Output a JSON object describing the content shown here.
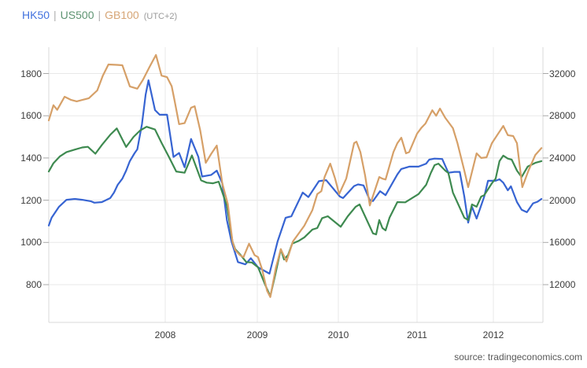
{
  "legend": {
    "items": [
      {
        "label": "HK50",
        "color": "#4372de"
      },
      {
        "label": "US500",
        "color": "#5e9472"
      },
      {
        "label": "GB100",
        "color": "#d6a576"
      }
    ],
    "separator": "|",
    "suffix": "(UTC+2)"
  },
  "source_text": "source: tradingeconomics.com",
  "colors": {
    "hk50_line": "#3764d2",
    "us500_line": "#3e8a50",
    "gb100_line": "#d6a068",
    "gridline": "#e8e8e8",
    "plot_border": "#d9d9d9",
    "tick": "#a8a8a8"
  },
  "chart_data": {
    "type": "line",
    "title": "",
    "xlabel": "",
    "ylabel_left": "",
    "ylabel_right": "",
    "grid": true,
    "legend_position": "top-left",
    "x_axis": {
      "tick_labels": [
        "2008",
        "2009",
        "2010",
        "2011",
        "2012"
      ],
      "range_years": [
        2006.75,
        2012.65
      ]
    },
    "y_axis_left": {
      "ticks": [
        1800,
        1600,
        1400,
        1200,
        1000,
        800
      ],
      "visible_range": [
        621,
        1925
      ]
    },
    "y_axis_right": {
      "ticks": [
        32000,
        28000,
        24000,
        20000,
        16000,
        12000
      ],
      "visible_range": [
        9400,
        34500
      ]
    },
    "series": [
      {
        "name": "HK50",
        "axis": "right",
        "color": "#3764d2",
        "points": [
          [
            2006.75,
            17600
          ],
          [
            2006.78,
            18340
          ],
          [
            2006.86,
            19380
          ],
          [
            2006.94,
            20040
          ],
          [
            2007.03,
            20120
          ],
          [
            2007.11,
            20040
          ],
          [
            2007.2,
            19900
          ],
          [
            2007.24,
            19760
          ],
          [
            2007.32,
            19820
          ],
          [
            2007.41,
            20200
          ],
          [
            2007.45,
            20720
          ],
          [
            2007.49,
            21460
          ],
          [
            2007.54,
            22040
          ],
          [
            2007.58,
            22800
          ],
          [
            2007.62,
            23700
          ],
          [
            2007.67,
            24440
          ],
          [
            2007.7,
            24820
          ],
          [
            2007.75,
            27200
          ],
          [
            2007.79,
            30000
          ],
          [
            2007.82,
            31360
          ],
          [
            2007.89,
            28540
          ],
          [
            2007.94,
            28100
          ],
          [
            2008.02,
            28100
          ],
          [
            2008.09,
            24100
          ],
          [
            2008.15,
            24480
          ],
          [
            2008.21,
            23120
          ],
          [
            2008.28,
            25800
          ],
          [
            2008.36,
            24100
          ],
          [
            2008.4,
            22240
          ],
          [
            2008.5,
            22400
          ],
          [
            2008.56,
            22800
          ],
          [
            2008.62,
            21600
          ],
          [
            2008.67,
            18100
          ],
          [
            2008.72,
            16100
          ],
          [
            2008.79,
            14140
          ],
          [
            2008.87,
            13920
          ],
          [
            2008.93,
            14500
          ],
          [
            2009.01,
            13640
          ],
          [
            2009.15,
            13040
          ],
          [
            2009.25,
            16100
          ],
          [
            2009.35,
            18340
          ],
          [
            2009.42,
            18480
          ],
          [
            2009.56,
            20720
          ],
          [
            2009.63,
            20300
          ],
          [
            2009.76,
            21800
          ],
          [
            2009.85,
            21900
          ],
          [
            2010.02,
            20340
          ],
          [
            2010.06,
            20200
          ],
          [
            2010.2,
            21340
          ],
          [
            2010.25,
            21500
          ],
          [
            2010.32,
            21400
          ],
          [
            2010.4,
            20000
          ],
          [
            2010.44,
            19920
          ],
          [
            2010.53,
            20860
          ],
          [
            2010.6,
            20480
          ],
          [
            2010.75,
            22440
          ],
          [
            2010.8,
            22960
          ],
          [
            2010.9,
            23180
          ],
          [
            2011.02,
            23180
          ],
          [
            2011.12,
            23460
          ],
          [
            2011.16,
            23840
          ],
          [
            2011.23,
            23940
          ],
          [
            2011.33,
            23900
          ],
          [
            2011.41,
            22600
          ],
          [
            2011.49,
            22680
          ],
          [
            2011.56,
            22680
          ],
          [
            2011.62,
            20340
          ],
          [
            2011.67,
            17880
          ],
          [
            2011.72,
            19380
          ],
          [
            2011.78,
            18260
          ],
          [
            2011.88,
            20340
          ],
          [
            2011.93,
            21840
          ],
          [
            2012.03,
            21840
          ],
          [
            2012.08,
            21980
          ],
          [
            2012.13,
            21660
          ],
          [
            2012.19,
            20940
          ],
          [
            2012.23,
            21320
          ],
          [
            2012.31,
            19820
          ],
          [
            2012.37,
            19100
          ],
          [
            2012.44,
            18860
          ],
          [
            2012.52,
            19700
          ],
          [
            2012.58,
            19860
          ],
          [
            2012.63,
            20120
          ]
        ]
      },
      {
        "name": "US500",
        "axis": "left",
        "color": "#3e8a50",
        "points": [
          [
            2006.75,
            1336
          ],
          [
            2006.8,
            1375
          ],
          [
            2006.87,
            1408
          ],
          [
            2006.94,
            1428
          ],
          [
            2007.03,
            1440
          ],
          [
            2007.11,
            1450
          ],
          [
            2007.17,
            1453
          ],
          [
            2007.25,
            1420
          ],
          [
            2007.32,
            1462
          ],
          [
            2007.41,
            1510
          ],
          [
            2007.48,
            1540
          ],
          [
            2007.58,
            1452
          ],
          [
            2007.66,
            1500
          ],
          [
            2007.73,
            1530
          ],
          [
            2007.8,
            1548
          ],
          [
            2007.89,
            1535
          ],
          [
            2007.96,
            1472
          ],
          [
            2008.04,
            1405
          ],
          [
            2008.12,
            1336
          ],
          [
            2008.21,
            1330
          ],
          [
            2008.29,
            1412
          ],
          [
            2008.39,
            1294
          ],
          [
            2008.45,
            1283
          ],
          [
            2008.52,
            1280
          ],
          [
            2008.58,
            1288
          ],
          [
            2008.67,
            1173
          ],
          [
            2008.73,
            1005
          ],
          [
            2008.76,
            968
          ],
          [
            2008.82,
            940
          ],
          [
            2008.88,
            907
          ],
          [
            2008.94,
            905
          ],
          [
            2009.01,
            882
          ],
          [
            2009.1,
            797
          ],
          [
            2009.16,
            745
          ],
          [
            2009.22,
            845
          ],
          [
            2009.29,
            968
          ],
          [
            2009.33,
            919
          ],
          [
            2009.38,
            940
          ],
          [
            2009.43,
            994
          ],
          [
            2009.51,
            1007
          ],
          [
            2009.58,
            1024
          ],
          [
            2009.68,
            1061
          ],
          [
            2009.74,
            1068
          ],
          [
            2009.8,
            1115
          ],
          [
            2009.87,
            1124
          ],
          [
            2010.03,
            1074
          ],
          [
            2010.12,
            1124
          ],
          [
            2010.22,
            1169
          ],
          [
            2010.27,
            1180
          ],
          [
            2010.44,
            1043
          ],
          [
            2010.48,
            1038
          ],
          [
            2010.52,
            1106
          ],
          [
            2010.56,
            1068
          ],
          [
            2010.6,
            1057
          ],
          [
            2010.65,
            1117
          ],
          [
            2010.75,
            1191
          ],
          [
            2010.85,
            1190
          ],
          [
            2011.02,
            1229
          ],
          [
            2011.12,
            1273
          ],
          [
            2011.18,
            1329
          ],
          [
            2011.23,
            1366
          ],
          [
            2011.28,
            1373
          ],
          [
            2011.37,
            1340
          ],
          [
            2011.41,
            1329
          ],
          [
            2011.47,
            1236
          ],
          [
            2011.62,
            1117
          ],
          [
            2011.67,
            1106
          ],
          [
            2011.72,
            1180
          ],
          [
            2011.78,
            1169
          ],
          [
            2011.84,
            1217
          ],
          [
            2011.88,
            1224
          ],
          [
            2011.98,
            1280
          ],
          [
            2012.03,
            1302
          ],
          [
            2012.08,
            1385
          ],
          [
            2012.13,
            1411
          ],
          [
            2012.19,
            1397
          ],
          [
            2012.24,
            1392
          ],
          [
            2012.31,
            1340
          ],
          [
            2012.37,
            1310
          ],
          [
            2012.45,
            1359
          ],
          [
            2012.55,
            1377
          ],
          [
            2012.63,
            1385
          ]
        ]
      },
      {
        "name": "GB100",
        "axis": "left",
        "color": "#d6a068",
        "points": [
          [
            2006.75,
            1578
          ],
          [
            2006.8,
            1650
          ],
          [
            2006.84,
            1628
          ],
          [
            2006.92,
            1690
          ],
          [
            2006.99,
            1675
          ],
          [
            2007.05,
            1668
          ],
          [
            2007.11,
            1675
          ],
          [
            2007.18,
            1683
          ],
          [
            2007.27,
            1720
          ],
          [
            2007.33,
            1790
          ],
          [
            2007.39,
            1843
          ],
          [
            2007.48,
            1841
          ],
          [
            2007.54,
            1839
          ],
          [
            2007.62,
            1739
          ],
          [
            2007.7,
            1728
          ],
          [
            2007.76,
            1770
          ],
          [
            2007.83,
            1830
          ],
          [
            2007.9,
            1888
          ],
          [
            2007.96,
            1790
          ],
          [
            2008.02,
            1783
          ],
          [
            2008.07,
            1740
          ],
          [
            2008.1,
            1675
          ],
          [
            2008.15,
            1560
          ],
          [
            2008.21,
            1565
          ],
          [
            2008.28,
            1638
          ],
          [
            2008.32,
            1645
          ],
          [
            2008.38,
            1530
          ],
          [
            2008.44,
            1377
          ],
          [
            2008.5,
            1420
          ],
          [
            2008.56,
            1459
          ],
          [
            2008.62,
            1280
          ],
          [
            2008.68,
            1181
          ],
          [
            2008.73,
            1005
          ],
          [
            2008.76,
            964
          ],
          [
            2008.81,
            940
          ],
          [
            2008.85,
            930
          ],
          [
            2008.91,
            994
          ],
          [
            2008.97,
            940
          ],
          [
            2009.01,
            930
          ],
          [
            2009.06,
            871
          ],
          [
            2009.12,
            771
          ],
          [
            2009.16,
            741
          ],
          [
            2009.23,
            882
          ],
          [
            2009.29,
            968
          ],
          [
            2009.36,
            910
          ],
          [
            2009.44,
            1005
          ],
          [
            2009.58,
            1079
          ],
          [
            2009.68,
            1153
          ],
          [
            2009.74,
            1229
          ],
          [
            2009.79,
            1243
          ],
          [
            2009.83,
            1310
          ],
          [
            2009.9,
            1373
          ],
          [
            2009.96,
            1302
          ],
          [
            2010.01,
            1229
          ],
          [
            2010.1,
            1302
          ],
          [
            2010.2,
            1470
          ],
          [
            2010.23,
            1477
          ],
          [
            2010.28,
            1428
          ],
          [
            2010.34,
            1317
          ],
          [
            2010.4,
            1175
          ],
          [
            2010.52,
            1310
          ],
          [
            2010.56,
            1302
          ],
          [
            2010.6,
            1298
          ],
          [
            2010.7,
            1428
          ],
          [
            2010.75,
            1470
          ],
          [
            2010.8,
            1496
          ],
          [
            2010.86,
            1422
          ],
          [
            2010.9,
            1428
          ],
          [
            2011.0,
            1515
          ],
          [
            2011.06,
            1544
          ],
          [
            2011.11,
            1563
          ],
          [
            2011.2,
            1626
          ],
          [
            2011.25,
            1600
          ],
          [
            2011.3,
            1634
          ],
          [
            2011.37,
            1590
          ],
          [
            2011.47,
            1541
          ],
          [
            2011.53,
            1470
          ],
          [
            2011.62,
            1340
          ],
          [
            2011.67,
            1262
          ],
          [
            2011.78,
            1422
          ],
          [
            2011.84,
            1400
          ],
          [
            2011.91,
            1403
          ],
          [
            2011.98,
            1470
          ],
          [
            2012.13,
            1552
          ],
          [
            2012.19,
            1508
          ],
          [
            2012.26,
            1504
          ],
          [
            2012.31,
            1470
          ],
          [
            2012.38,
            1262
          ],
          [
            2012.46,
            1340
          ],
          [
            2012.55,
            1414
          ],
          [
            2012.63,
            1447
          ]
        ]
      }
    ]
  }
}
